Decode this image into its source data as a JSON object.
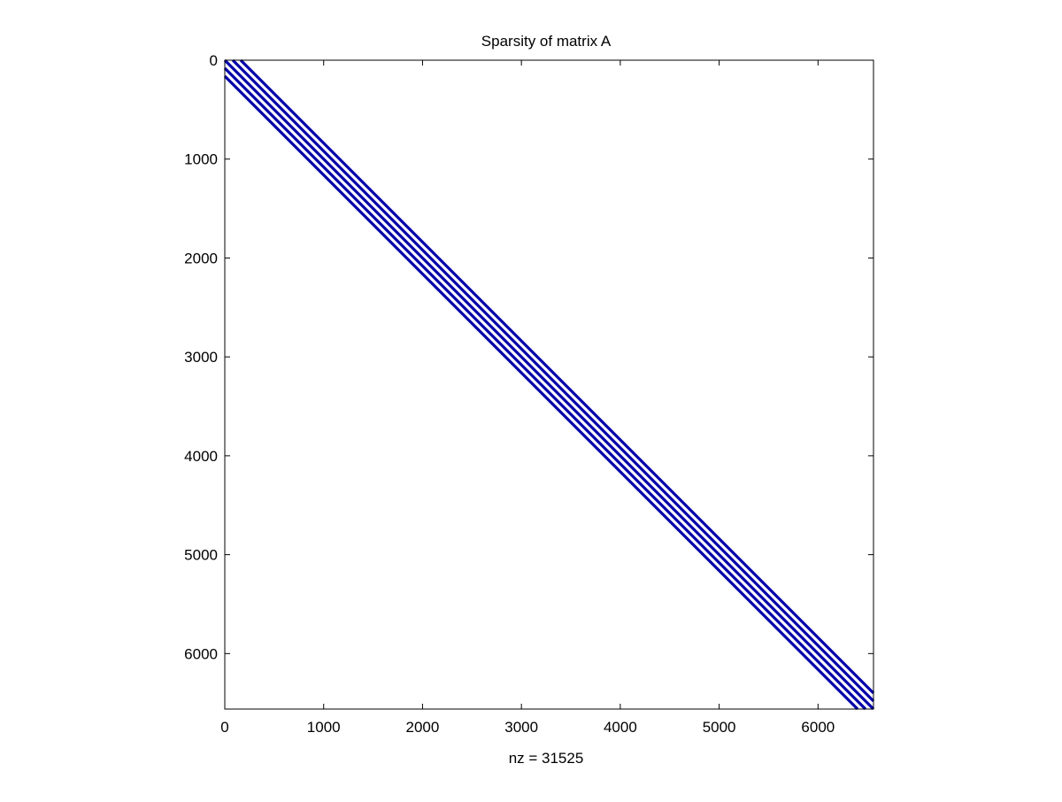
{
  "chart_data": {
    "type": "scatter",
    "title": "Sparsity of matrix A",
    "xlabel": "nz = 31525",
    "ylabel": "",
    "xlim": [
      0,
      6561
    ],
    "ylim": [
      0,
      6561
    ],
    "y_axis_reversed": true,
    "x_ticks": [
      0,
      1000,
      2000,
      3000,
      4000,
      5000,
      6000
    ],
    "y_ticks": [
      0,
      1000,
      2000,
      3000,
      4000,
      5000,
      6000
    ],
    "grid": false,
    "marker_color": "#0000aa",
    "series": [
      {
        "x": [
          0,
          6561
        ],
        "y": [
          0,
          6561
        ]
      },
      {
        "x": [
          0,
          6480
        ],
        "y": [
          81,
          6561
        ]
      },
      {
        "x": [
          81,
          6561
        ],
        "y": [
          0,
          6480
        ]
      },
      {
        "x": [
          0,
          6400
        ],
        "y": [
          161,
          6561
        ]
      },
      {
        "x": [
          161,
          6561
        ],
        "y": [
          0,
          6400
        ]
      }
    ]
  }
}
